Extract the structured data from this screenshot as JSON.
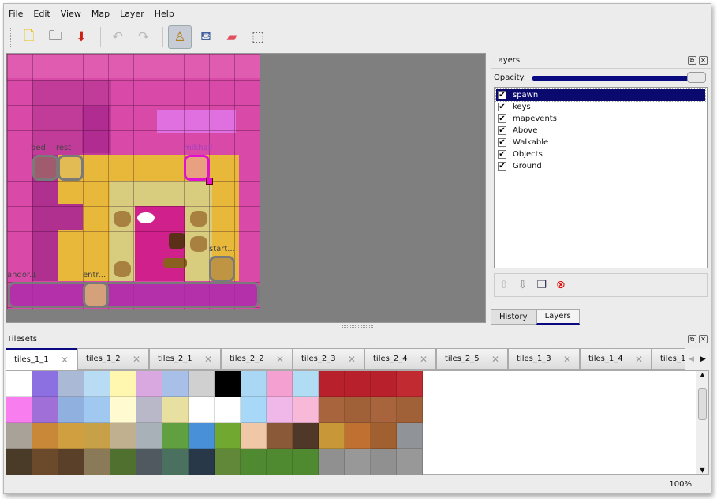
{
  "menu": [
    "File",
    "Edit",
    "View",
    "Map",
    "Layer",
    "Help"
  ],
  "toolbar": [
    {
      "icon": "new-file-icon",
      "glyph": "🗋"
    },
    {
      "icon": "open-folder-icon",
      "glyph": "🗀"
    },
    {
      "icon": "save-icon",
      "glyph": "⬇"
    },
    {
      "icon": "undo-icon",
      "glyph": "↶"
    },
    {
      "icon": "redo-icon",
      "glyph": "↷"
    },
    {
      "icon": "stamp-brush-icon",
      "glyph": "♙",
      "active": true
    },
    {
      "icon": "bucket-fill-icon",
      "glyph": "⛾"
    },
    {
      "icon": "eraser-icon",
      "glyph": "▰"
    },
    {
      "icon": "rectangle-select-icon",
      "glyph": "⬚"
    }
  ],
  "map": {
    "objects": [
      {
        "name": "bed"
      },
      {
        "name": "rest"
      },
      {
        "name": "mikhail"
      },
      {
        "name": "start..."
      },
      {
        "name": "andor.1"
      },
      {
        "name": "entr..."
      }
    ]
  },
  "layers_panel": {
    "title": "Layers",
    "opacity_label": "Opacity:",
    "opacity": 1.0,
    "layers": [
      {
        "name": "spawn",
        "visible": true,
        "selected": true
      },
      {
        "name": "keys",
        "visible": true
      },
      {
        "name": "mapevents",
        "visible": true
      },
      {
        "name": "Above",
        "visible": true
      },
      {
        "name": "Walkable",
        "visible": true
      },
      {
        "name": "Objects",
        "visible": true
      },
      {
        "name": "Ground",
        "visible": true
      }
    ],
    "tabs": [
      "History",
      "Layers"
    ],
    "active_tab": "Layers"
  },
  "tilesets_panel": {
    "title": "Tilesets",
    "tabs": [
      "tiles_1_1",
      "tiles_1_2",
      "tiles_2_1",
      "tiles_2_2",
      "tiles_2_3",
      "tiles_2_4",
      "tiles_2_5",
      "tiles_1_3",
      "tiles_1_4",
      "tiles_1_"
    ],
    "active_tab": "tiles_1_1",
    "tile_colors": [
      [
        "#ffffff",
        "#8c6fe0",
        "#a9b9d6",
        "#b8dcf4",
        "#fff6b0",
        "#d9a8e0",
        "#a8c0e8",
        "#d0d0d0",
        "#000000",
        "#aad8f4",
        "#f4a0d0",
        "#b0dcf4",
        "#b8202c",
        "#b8202c",
        "#b8202c",
        "#c02a30"
      ],
      [
        "#f87ef0",
        "#a070d8",
        "#90b0e0",
        "#a0c8f0",
        "#fffad0",
        "#b8b8c8",
        "#e8e0a0",
        "#ffffff",
        "#ffffff",
        "#a8d8f8",
        "#f0b8e8",
        "#f8b8d8",
        "#a8643c",
        "#a06038",
        "#a8643c",
        "#a06038"
      ],
      [
        "#a8a298",
        "#c88838",
        "#d0a040",
        "#c8a048",
        "#c0b090",
        "#a8b0b8",
        "#60a040",
        "#4890d8",
        "#70a830",
        "#f0c8a8",
        "#8a5a38",
        "#503828",
        "#c89838",
        "#c07030",
        "#a06030",
        "#909498"
      ],
      [
        "#4a3a28",
        "#6a4a2a",
        "#5a4028",
        "#8a7a58",
        "#507030",
        "#505860",
        "#4a7060",
        "#283848",
        "#608838",
        "#508a30",
        "#508a30",
        "#508a30",
        "#909090",
        "#989898",
        "#909090",
        "#989898"
      ]
    ]
  },
  "status": {
    "zoom": "100%"
  }
}
